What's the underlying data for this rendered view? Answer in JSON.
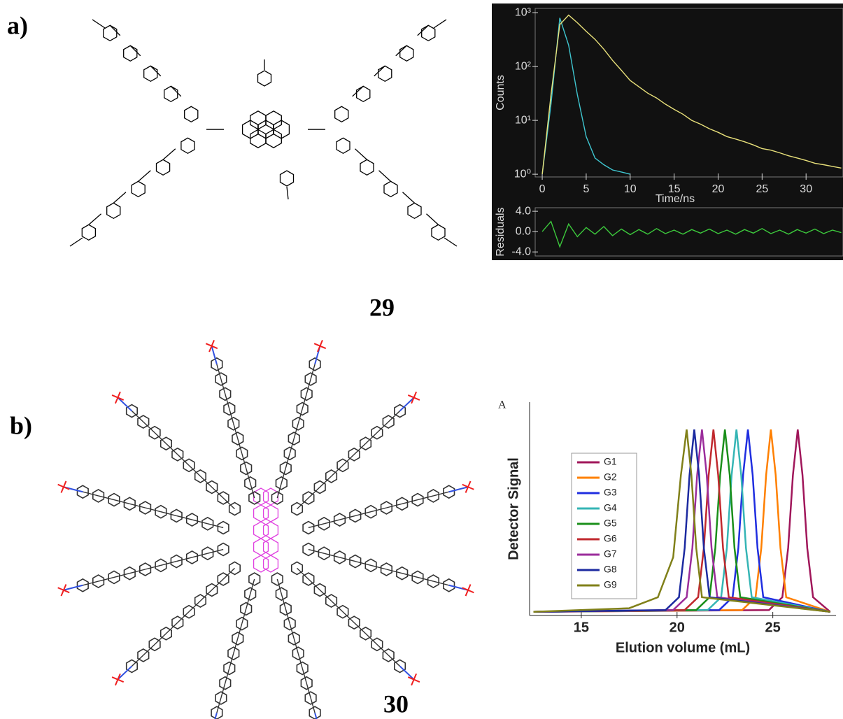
{
  "panels": {
    "a_label": "a)",
    "b_label": "b)",
    "compound_a": "29",
    "compound_b": "30"
  },
  "chart_data": [
    {
      "type": "line",
      "log_scale": true,
      "xlabel": "Time/ns",
      "ylabel": "Counts",
      "x": [
        0,
        1,
        2,
        3,
        4,
        5,
        6,
        7,
        8,
        9,
        10,
        11,
        12,
        13,
        14,
        15,
        16,
        17,
        18,
        19,
        20,
        21,
        22,
        23,
        24,
        25,
        26,
        27,
        28,
        29,
        30,
        31,
        32,
        33,
        34
      ],
      "series": [
        {
          "color": "#3fc6d0",
          "values": [
            1,
            20,
            800,
            250,
            30,
            5,
            2,
            1.5,
            1.2,
            1.1,
            1,
            null,
            null,
            null,
            null,
            null,
            null,
            null,
            null,
            null,
            null,
            null,
            null,
            null,
            null,
            null,
            null,
            null,
            null,
            null,
            null,
            null,
            null,
            null,
            null
          ]
        },
        {
          "color": "#e8e07a",
          "values": [
            1,
            30,
            600,
            900,
            650,
            450,
            320,
            210,
            130,
            85,
            55,
            42,
            32,
            26,
            20,
            16,
            13,
            10,
            8.5,
            7,
            6,
            5,
            4.5,
            4,
            3.5,
            3,
            2.8,
            2.5,
            2.2,
            2,
            1.8,
            1.6,
            1.5,
            1.4,
            1.3
          ]
        }
      ],
      "xlim": [
        -0.8,
        34.2
      ],
      "ylim": [
        0.89,
        1200
      ],
      "xticks": [
        0,
        5,
        10,
        15,
        20,
        25,
        30
      ],
      "yticks": [
        {
          "value": 1,
          "label": "10⁰"
        },
        {
          "value": 10,
          "label": "10¹"
        },
        {
          "value": 100,
          "label": "10²"
        },
        {
          "value": 1000,
          "label": "10³"
        }
      ]
    },
    {
      "type": "line",
      "ylabel": "Residuals",
      "x": [
        0,
        1,
        2,
        3,
        4,
        5,
        6,
        7,
        8,
        9,
        10,
        11,
        12,
        13,
        14,
        15,
        16,
        17,
        18,
        19,
        20,
        21,
        22,
        23,
        24,
        25,
        26,
        27,
        28,
        29,
        30,
        31,
        32,
        33,
        34
      ],
      "series": [
        {
          "color": "#3cc83c",
          "values": [
            0,
            2,
            -3,
            1.5,
            -1,
            0.8,
            -0.5,
            1,
            -0.8,
            0.5,
            -0.6,
            0.4,
            -0.5,
            0.6,
            -0.4,
            0.3,
            -0.5,
            0.4,
            -0.3,
            0.5,
            -0.4,
            0.3,
            -0.5,
            0.4,
            -0.3,
            0.6,
            -0.4,
            0.3,
            -0.5,
            0.4,
            -0.3,
            0.5,
            -0.4,
            0.3,
            -0.2
          ]
        }
      ],
      "xlim": [
        -0.8,
        34.2
      ],
      "ylim": [
        -4.8,
        4.7
      ],
      "yticks": [
        {
          "value": 4,
          "label": "4.0"
        },
        {
          "value": 0,
          "label": "0.0"
        },
        {
          "value": -4,
          "label": "-4.0"
        }
      ]
    },
    {
      "type": "line",
      "annotation": "A",
      "xlabel": "Elution volume (mL)",
      "ylabel": "Detector Signal",
      "legend": "upper left",
      "series": [
        {
          "name": "G1",
          "color": "#a0165a",
          "x": [
            12.5,
            24.8,
            25.5,
            25.8,
            26.05,
            26.3,
            26.55,
            26.8,
            27.1,
            28
          ],
          "values": [
            0,
            0.01,
            0.08,
            0.35,
            0.75,
            1,
            0.75,
            0.35,
            0.08,
            0
          ]
        },
        {
          "name": "G2",
          "color": "#ff8000",
          "x": [
            12.5,
            23.4,
            24.1,
            24.4,
            24.65,
            24.9,
            25.15,
            25.4,
            25.7,
            28
          ],
          "values": [
            0,
            0.01,
            0.08,
            0.35,
            0.75,
            1,
            0.75,
            0.35,
            0.08,
            0
          ]
        },
        {
          "name": "G3",
          "color": "#1f2ee0",
          "x": [
            12.5,
            22.2,
            22.9,
            23.2,
            23.45,
            23.7,
            23.95,
            24.2,
            24.5,
            28
          ],
          "values": [
            0,
            0.01,
            0.08,
            0.35,
            0.75,
            1,
            0.75,
            0.35,
            0.08,
            0
          ]
        },
        {
          "name": "G4",
          "color": "#35b5b5",
          "x": [
            12.5,
            21.6,
            22.3,
            22.6,
            22.85,
            23.1,
            23.35,
            23.6,
            23.9,
            28
          ],
          "values": [
            0,
            0.01,
            0.08,
            0.35,
            0.75,
            1,
            0.75,
            0.35,
            0.08,
            0
          ]
        },
        {
          "name": "G5",
          "color": "#1a8f1a",
          "x": [
            12.5,
            21,
            21.7,
            22,
            22.25,
            22.5,
            22.75,
            23,
            23.3,
            28
          ],
          "values": [
            0,
            0.01,
            0.08,
            0.35,
            0.75,
            1,
            0.75,
            0.35,
            0.08,
            0
          ]
        },
        {
          "name": "G6",
          "color": "#c0282d",
          "x": [
            12.5,
            20.4,
            21.1,
            21.4,
            21.65,
            21.9,
            22.15,
            22.4,
            22.7,
            28
          ],
          "values": [
            0,
            0.01,
            0.08,
            0.35,
            0.75,
            1,
            0.75,
            0.35,
            0.08,
            0
          ]
        },
        {
          "name": "G7",
          "color": "#9b2d9b",
          "x": [
            12.5,
            19.8,
            20.5,
            20.8,
            21.05,
            21.3,
            21.55,
            21.8,
            22.1,
            28
          ],
          "values": [
            0,
            0.01,
            0.08,
            0.35,
            0.75,
            1,
            0.75,
            0.35,
            0.08,
            0
          ]
        },
        {
          "name": "G8",
          "color": "#1c2aa0",
          "x": [
            12.5,
            19.4,
            20.1,
            20.4,
            20.65,
            20.9,
            21.15,
            21.4,
            21.7,
            28
          ],
          "values": [
            0,
            0.01,
            0.08,
            0.35,
            0.75,
            1,
            0.75,
            0.35,
            0.08,
            0
          ]
        },
        {
          "name": "G9",
          "color": "#808019",
          "x": [
            12.5,
            17.5,
            19,
            19.8,
            20.2,
            20.5,
            20.75,
            21,
            21.3,
            28
          ],
          "values": [
            0,
            0.02,
            0.08,
            0.3,
            0.75,
            1,
            0.75,
            0.35,
            0.08,
            0
          ]
        }
      ],
      "xlim": [
        12.3,
        28.3
      ],
      "ylim": [
        -0.02,
        1.15
      ],
      "xticks": [
        15,
        20,
        25
      ]
    }
  ]
}
